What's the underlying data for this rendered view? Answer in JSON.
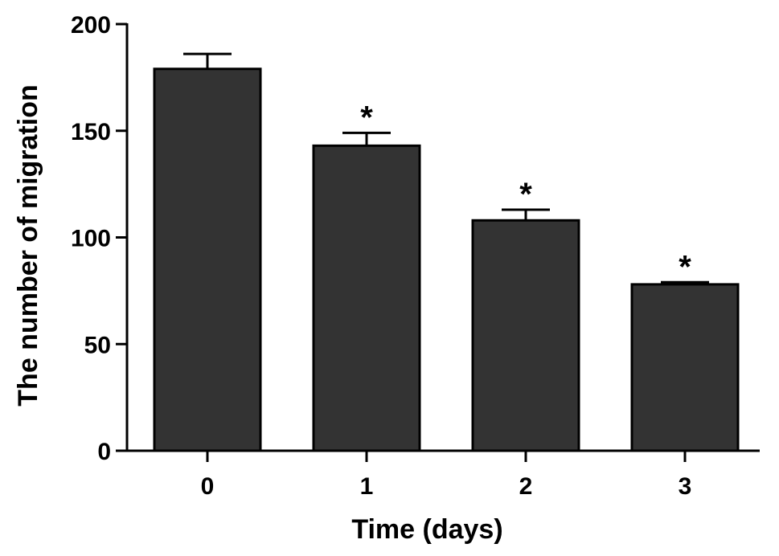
{
  "chart_data": {
    "type": "bar",
    "categories": [
      "0",
      "1",
      "2",
      "3"
    ],
    "values": [
      179,
      143,
      108,
      78
    ],
    "errors": [
      7,
      6,
      5,
      1
    ],
    "annotations": [
      "",
      "*",
      "*",
      "*"
    ],
    "xlabel": "Time (days)",
    "ylabel": "The number of migration",
    "ylim": [
      0,
      200
    ],
    "yticks": [
      0,
      50,
      100,
      150,
      200
    ],
    "grid": false,
    "bar_color": "#333333",
    "edge_color": "#000000"
  }
}
